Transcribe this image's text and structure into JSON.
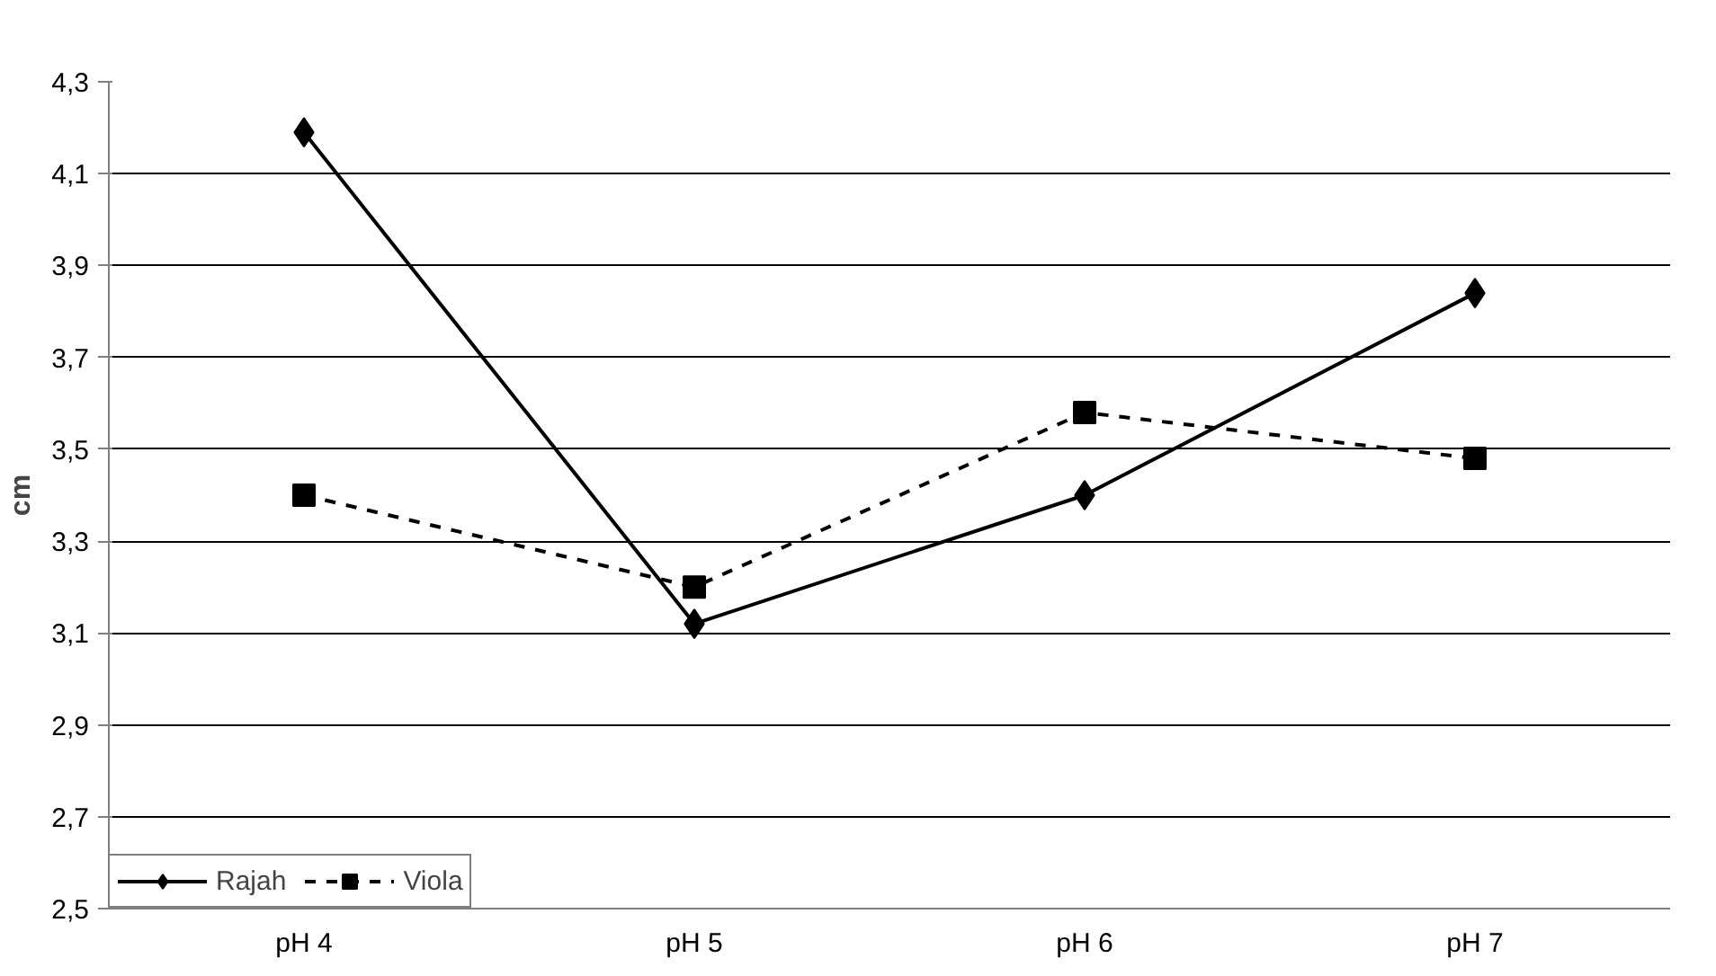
{
  "chart_data": {
    "type": "line",
    "ylabel": "cm",
    "categories": [
      "pH 4",
      "pH 5",
      "pH 6",
      "pH 7"
    ],
    "series": [
      {
        "name": "Rajah",
        "color": "#000000",
        "values": [
          4.19,
          3.12,
          3.4,
          3.84
        ],
        "marker": "diamond",
        "line_style": "solid"
      },
      {
        "name": "Viola",
        "color": "#000000",
        "values": [
          3.4,
          3.2,
          3.58,
          3.48
        ],
        "marker": "square",
        "line_style": "dashed"
      }
    ],
    "ylim": [
      2.5,
      4.3
    ],
    "yticks": [
      {
        "value": 2.5,
        "label": "2,5"
      },
      {
        "value": 2.7,
        "label": "2,7"
      },
      {
        "value": 2.9,
        "label": "2,9"
      },
      {
        "value": 3.1,
        "label": "3,1"
      },
      {
        "value": 3.3,
        "label": "3,3"
      },
      {
        "value": 3.5,
        "label": "3,5"
      },
      {
        "value": 3.7,
        "label": "3,7"
      },
      {
        "value": 3.9,
        "label": "3,9"
      },
      {
        "value": 4.1,
        "label": "4,1"
      },
      {
        "value": 4.3,
        "label": "4,3"
      }
    ],
    "grid": "y",
    "legend": "bottom"
  }
}
